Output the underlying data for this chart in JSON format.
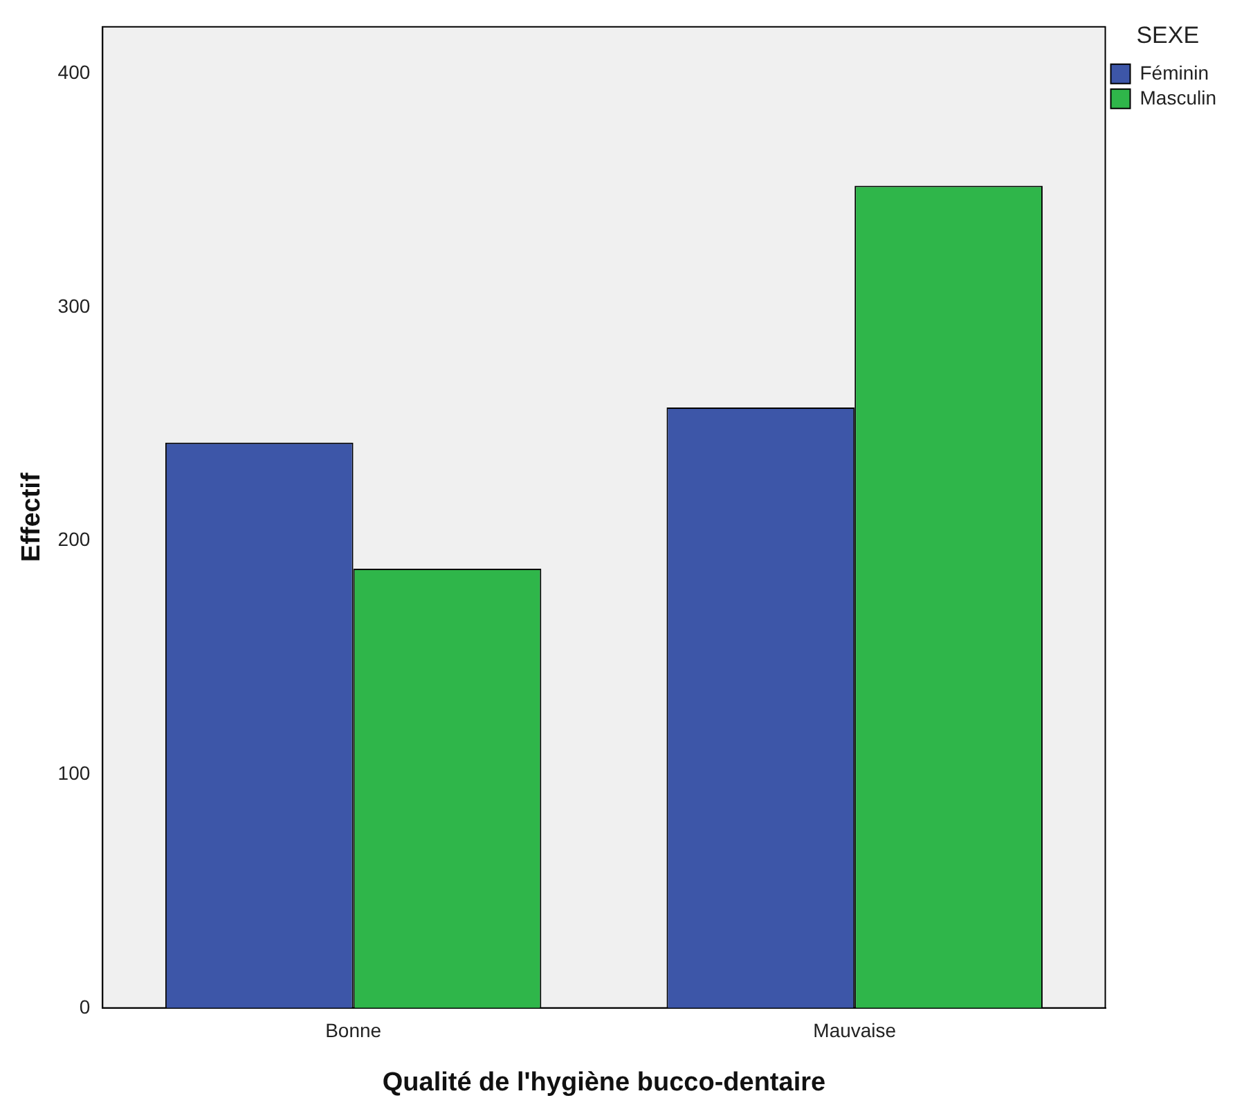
{
  "chart_data": {
    "type": "bar",
    "xlabel": "Qualité de l'hygiène bucco-dentaire",
    "ylabel": "Effectif",
    "legend_title": "SEXE",
    "legend": "top right",
    "grid": false,
    "categories": [
      "Bonne",
      "Mauvaise"
    ],
    "series": [
      {
        "name": "Féminin",
        "color": "#3d56a8",
        "values": [
          242,
          257
        ]
      },
      {
        "name": "Masculin",
        "color": "#2fb64a",
        "values": [
          188,
          352
        ]
      }
    ],
    "ylim": [
      0,
      420
    ],
    "yticks": [
      0,
      100,
      200,
      300,
      400
    ]
  }
}
